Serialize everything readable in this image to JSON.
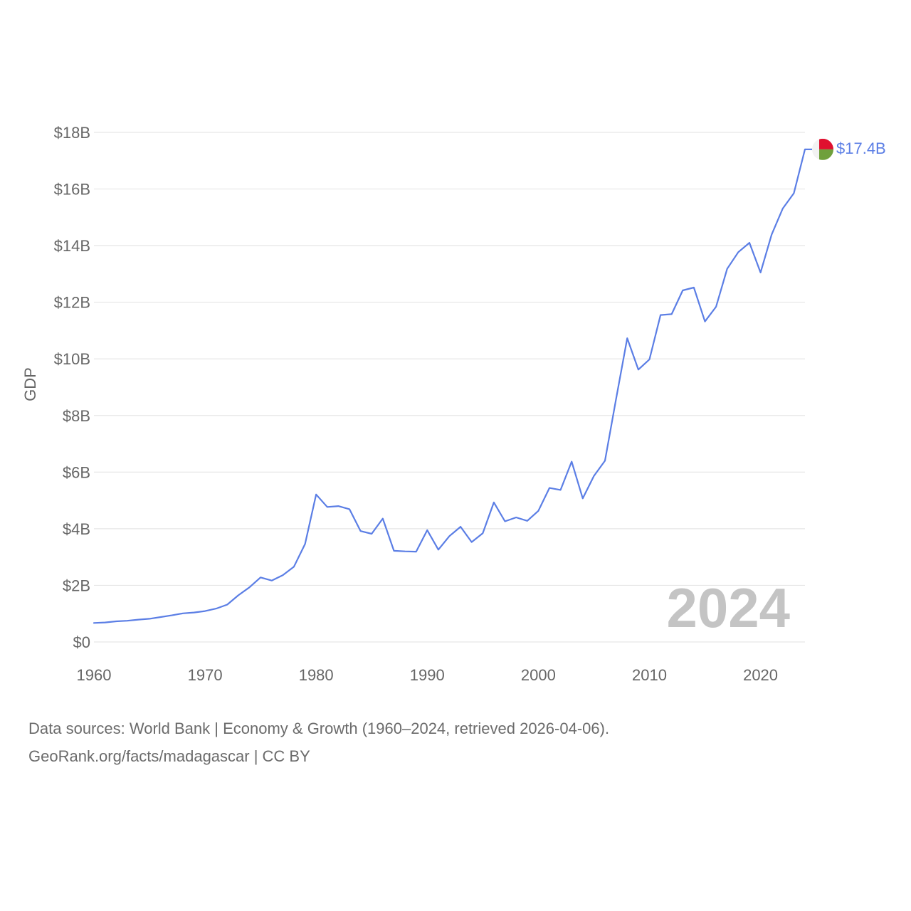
{
  "chart_data": {
    "type": "line",
    "title": "",
    "ylabel": "GDP",
    "xlabel": "",
    "xlim": [
      1960,
      2024
    ],
    "ylim": [
      0,
      18
    ],
    "y_unit": "billion USD",
    "y_ticks": [
      0,
      2,
      4,
      6,
      8,
      10,
      12,
      14,
      16,
      18
    ],
    "y_tick_labels": [
      "$0",
      "$2B",
      "$4B",
      "$6B",
      "$8B",
      "$10B",
      "$12B",
      "$14B",
      "$16B",
      "$18B"
    ],
    "x_ticks": [
      1960,
      1970,
      1980,
      1990,
      2000,
      2010,
      2020
    ],
    "x_tick_labels": [
      "1960",
      "1970",
      "1980",
      "1990",
      "2000",
      "2010",
      "2020"
    ],
    "grid": true,
    "current_year": "2024",
    "series": [
      {
        "name": "Madagascar",
        "color": "#5b7ee5",
        "end_label": "$17.4B",
        "x": [
          1960,
          1961,
          1962,
          1963,
          1964,
          1965,
          1966,
          1967,
          1968,
          1969,
          1970,
          1971,
          1972,
          1973,
          1974,
          1975,
          1976,
          1977,
          1978,
          1979,
          1980,
          1981,
          1982,
          1983,
          1984,
          1985,
          1986,
          1987,
          1988,
          1989,
          1990,
          1991,
          1992,
          1993,
          1994,
          1995,
          1996,
          1997,
          1998,
          1999,
          2000,
          2001,
          2002,
          2003,
          2004,
          2005,
          2006,
          2007,
          2008,
          2009,
          2010,
          2011,
          2012,
          2013,
          2014,
          2015,
          2016,
          2017,
          2018,
          2019,
          2020,
          2021,
          2022,
          2023,
          2024
        ],
        "values": [
          0.67,
          0.69,
          0.73,
          0.75,
          0.79,
          0.82,
          0.88,
          0.94,
          1.01,
          1.04,
          1.09,
          1.18,
          1.32,
          1.65,
          1.93,
          2.28,
          2.17,
          2.36,
          2.66,
          3.46,
          5.21,
          4.77,
          4.8,
          4.69,
          3.92,
          3.82,
          4.36,
          3.22,
          3.2,
          3.19,
          3.95,
          3.26,
          3.74,
          4.07,
          3.53,
          3.84,
          4.93,
          4.26,
          4.4,
          4.28,
          4.63,
          5.44,
          5.37,
          6.37,
          5.07,
          5.86,
          6.4,
          8.58,
          10.73,
          9.62,
          9.98,
          11.55,
          11.58,
          12.42,
          12.52,
          11.32,
          11.84,
          13.18,
          13.77,
          14.1,
          13.05,
          14.39,
          15.31,
          15.85,
          17.4
        ]
      }
    ]
  },
  "flag": {
    "name": "madagascar-flag",
    "colors": {
      "white": "#f2f2f2",
      "red": "#e0102f",
      "green": "#6fa03c"
    }
  },
  "footer": {
    "sources_line": "Data sources: World Bank | Economy & Growth (1960–2024, retrieved 2026-04-06).",
    "credit_line": "GeoRank.org/facts/madagascar | CC BY"
  }
}
